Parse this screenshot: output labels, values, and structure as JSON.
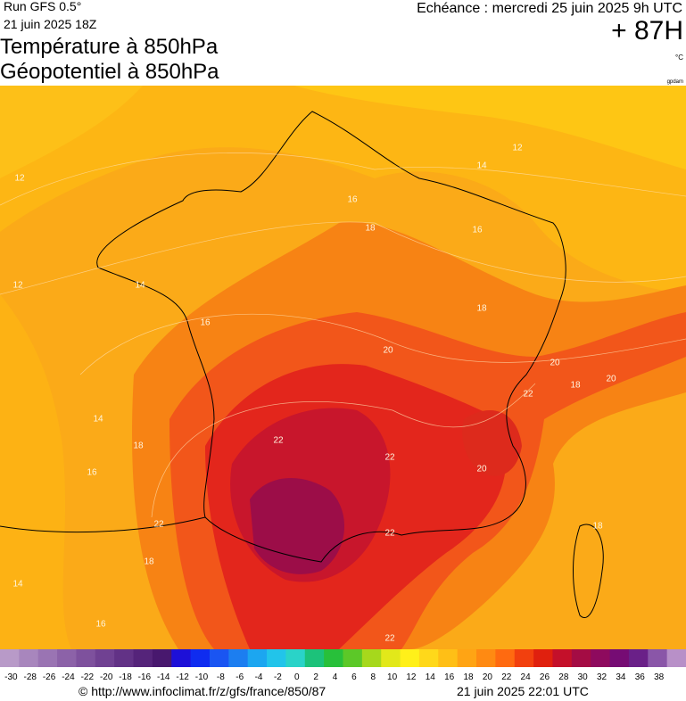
{
  "header": {
    "run": "Run GFS 0.5°",
    "run_date": "21 juin 2025 18Z",
    "title": "Température à 850hPa",
    "subtitle": "Géopotentiel à 850hPa",
    "valid": "Echéance : mercredi 25 juin 2025 9h UTC",
    "lead": "+ 87H",
    "unit": "°C",
    "credit": "gpdam"
  },
  "contour_labels": [
    12,
    14,
    12,
    16,
    18,
    16,
    12,
    14,
    16,
    18,
    20,
    20,
    20,
    22,
    18,
    14,
    18,
    22,
    22,
    16,
    20,
    22,
    18,
    22,
    18,
    14,
    16,
    22
  ],
  "color_scale": {
    "ticks": [
      -30,
      -28,
      -26,
      -24,
      -22,
      -20,
      -18,
      -16,
      -14,
      -12,
      -10,
      -8,
      -6,
      -4,
      -2,
      0,
      2,
      4,
      6,
      8,
      10,
      12,
      14,
      16,
      18,
      20,
      22,
      24,
      26,
      28,
      30,
      32,
      34,
      36,
      38
    ],
    "colors": [
      "#b89ac8",
      "#a886bd",
      "#9a74b3",
      "#8c62a8",
      "#7e519d",
      "#704192",
      "#623286",
      "#55247a",
      "#48186e",
      "#1d10d8",
      "#0f2cf0",
      "#1a55f2",
      "#1c7ef0",
      "#1ca6f0",
      "#22c4ea",
      "#2ad3c8",
      "#1cc27a",
      "#28c03a",
      "#5cc828",
      "#a6d81c",
      "#e2e81a",
      "#fff01a",
      "#ffd81a",
      "#ffbf16",
      "#ffa414",
      "#ff8a12",
      "#ff6a10",
      "#f2400e",
      "#e0200e",
      "#c4102a",
      "#a40c44",
      "#8e0a5e",
      "#760c74",
      "#6a2088",
      "#8a56a8",
      "#b890c8"
    ]
  },
  "footer": {
    "source": "© http://www.infoclimat.fr/z/gfs/france/850/87",
    "generated": "21 juin 2025 22:01 UTC"
  }
}
